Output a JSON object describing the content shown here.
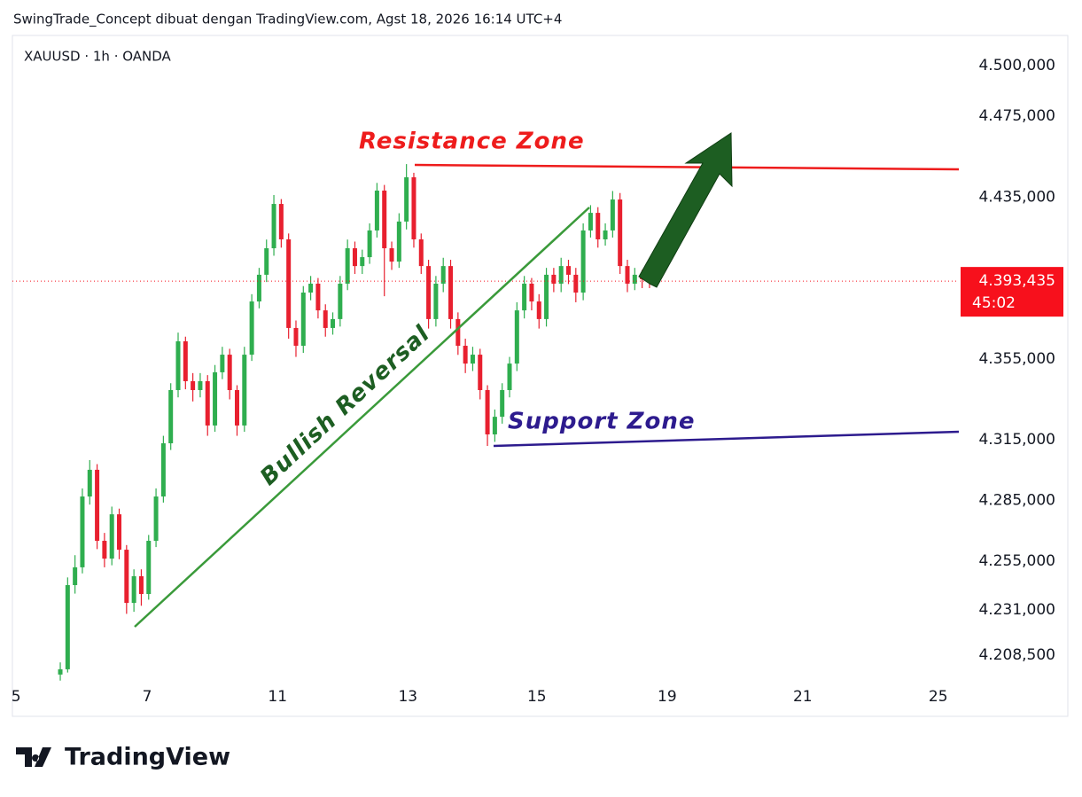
{
  "header": {
    "title": "SwingTrade_Concept dibuat dengan TradingView.com, Agst 18, 2026 16:14 UTC+4"
  },
  "chart_data": {
    "type": "candlestick",
    "symbol": "XAUUSD · 1h · OANDA",
    "open": [
      4199.0,
      4201.6,
      4243.2,
      4252.0,
      4287.0,
      4300.2,
      4265.1,
      4256.3,
      4278.2,
      4260.7,
      4234.4,
      4247.6,
      4238.8,
      4265.1,
      4287.0,
      4313.3,
      4339.6,
      4363.7,
      4344.0,
      4339.6,
      4344.0,
      4322.1,
      4348.4,
      4357.1,
      4339.6,
      4322.1,
      4357.1,
      4383.4,
      4396.6,
      4409.7,
      4431.6,
      4414.1,
      4370.3,
      4361.5,
      4387.8,
      4392.2,
      4379.0,
      4370.3,
      4374.7,
      4392.2,
      4409.7,
      4400.9,
      4405.3,
      4418.5,
      4438.2,
      4409.7,
      4403.1,
      4422.9,
      4444.8,
      4414.1,
      4400.9,
      4374.7,
      4392.2,
      4400.9,
      4374.7,
      4361.5,
      4352.7,
      4357.1,
      4339.6,
      4317.7,
      4326.4,
      4339.6,
      4352.7,
      4379.0,
      4392.2,
      4383.4,
      4374.7,
      4396.6,
      4392.2,
      4400.9,
      4396.6,
      4387.8,
      4418.5,
      4427.2,
      4414.1,
      4418.5,
      4433.8,
      4400.9,
      4392.2,
      4396.6,
      4394.4
    ],
    "high": [
      4205.0,
      4247.0,
      4258.0,
      4291.0,
      4305.0,
      4303.0,
      4269.0,
      4282.0,
      4281.0,
      4263.0,
      4251.0,
      4251.0,
      4268.0,
      4291.0,
      4317.0,
      4343.0,
      4368.0,
      4366.0,
      4348.0,
      4348.0,
      4347.0,
      4352.0,
      4361.0,
      4360.0,
      4342.0,
      4361.0,
      4387.0,
      4400.0,
      4414.0,
      4436.0,
      4434.0,
      4417.0,
      4374.0,
      4391.0,
      4396.0,
      4395.0,
      4382.0,
      4378.0,
      4396.0,
      4414.0,
      4413.0,
      4409.0,
      4422.0,
      4442.0,
      4441.0,
      4413.0,
      4427.0,
      4451.3,
      4447.0,
      4417.0,
      4404.0,
      4396.0,
      4405.0,
      4404.0,
      4378.0,
      4365.0,
      4361.0,
      4360.0,
      4342.0,
      4330.0,
      4343.0,
      4356.0,
      4383.0,
      4396.0,
      4395.0,
      4387.0,
      4400.0,
      4400.0,
      4405.0,
      4404.0,
      4400.0,
      4422.0,
      4431.0,
      4430.0,
      4422.0,
      4438.0,
      4437.0,
      4404.0,
      4400.0,
      4399.0,
      4397.0
    ],
    "low": [
      4196.0,
      4200.0,
      4239.0,
      4249.0,
      4283.0,
      4261.0,
      4252.0,
      4253.0,
      4256.0,
      4229.0,
      4230.0,
      4233.0,
      4236.0,
      4262.0,
      4284.0,
      4310.0,
      4336.0,
      4340.0,
      4334.0,
      4336.0,
      4317.0,
      4319.0,
      4345.0,
      4335.0,
      4317.0,
      4319.0,
      4354.0,
      4380.0,
      4393.0,
      4406.0,
      4410.0,
      4365.0,
      4356.0,
      4358.0,
      4384.0,
      4375.0,
      4366.0,
      4367.0,
      4371.0,
      4389.0,
      4397.0,
      4397.0,
      4402.0,
      4415.0,
      4386.0,
      4399.0,
      4400.0,
      4419.0,
      4410.0,
      4397.0,
      4370.0,
      4371.0,
      4388.0,
      4370.0,
      4357.0,
      4348.0,
      4349.0,
      4335.0,
      4312.0,
      4314.0,
      4323.0,
      4336.0,
      4349.0,
      4375.0,
      4379.0,
      4370.0,
      4371.0,
      4388.0,
      4388.0,
      4392.0,
      4383.0,
      4384.0,
      4415.0,
      4410.0,
      4411.0,
      4415.0,
      4397.0,
      4388.0,
      4389.0,
      4390.0,
      4390.0
    ],
    "close": [
      4201.6,
      4243.2,
      4252.0,
      4287.0,
      4300.2,
      4265.1,
      4256.3,
      4278.2,
      4260.7,
      4234.4,
      4247.6,
      4238.8,
      4265.1,
      4287.0,
      4313.3,
      4339.6,
      4363.7,
      4344.0,
      4339.6,
      4344.0,
      4322.1,
      4348.4,
      4357.1,
      4339.6,
      4322.1,
      4357.1,
      4383.4,
      4396.6,
      4409.7,
      4431.6,
      4414.1,
      4370.3,
      4361.5,
      4387.8,
      4392.2,
      4379.0,
      4370.3,
      4374.7,
      4392.2,
      4409.7,
      4400.9,
      4405.3,
      4418.5,
      4438.2,
      4409.7,
      4403.1,
      4422.9,
      4444.8,
      4414.1,
      4400.9,
      4374.7,
      4392.2,
      4400.9,
      4374.7,
      4361.5,
      4352.7,
      4357.1,
      4339.6,
      4317.7,
      4326.4,
      4339.6,
      4352.7,
      4379.0,
      4392.2,
      4383.4,
      4374.7,
      4396.6,
      4392.2,
      4400.9,
      4396.6,
      4387.8,
      4418.5,
      4427.2,
      4414.1,
      4418.5,
      4433.8,
      4400.9,
      4392.2,
      4396.6,
      4394.4,
      4393.435
    ],
    "up_color": "#2fae4f",
    "down_color": "#e8202f",
    "xlim": [
      -6.5,
      122.0
    ],
    "xticks": [
      {
        "value": -6.0,
        "label": "5"
      },
      {
        "value": 11.8,
        "label": "7"
      },
      {
        "value": 29.5,
        "label": "11"
      },
      {
        "value": 47.2,
        "label": "13"
      },
      {
        "value": 64.7,
        "label": "15"
      },
      {
        "value": 82.4,
        "label": "19"
      },
      {
        "value": 100.8,
        "label": "21"
      },
      {
        "value": 119.2,
        "label": "25"
      }
    ],
    "ylim": [
      4195.0,
      4514.0
    ],
    "yticks": [
      {
        "value": 4500,
        "label": "4.500,000"
      },
      {
        "value": 4475,
        "label": "4.475,000"
      },
      {
        "value": 4435,
        "label": "4.435,000"
      },
      {
        "value": 4355,
        "label": "4.355,000"
      },
      {
        "value": 4315,
        "label": "4.315,000"
      },
      {
        "value": 4285,
        "label": "4.285,000"
      },
      {
        "value": 4255,
        "label": "4.255,000"
      },
      {
        "value": 4231,
        "label": "4.231,000"
      },
      {
        "value": 4208.5,
        "label": "4.208,500"
      }
    ],
    "last_price": {
      "value": 4393.435,
      "label": "4.393,435",
      "color": "#f7101c"
    },
    "countdown": "45:02",
    "annotations": {
      "resistance": "Resistance Zone",
      "support": "Support Zone",
      "trend": "Bullish Reversal"
    }
  },
  "footer": {
    "logo": "TradingView"
  }
}
